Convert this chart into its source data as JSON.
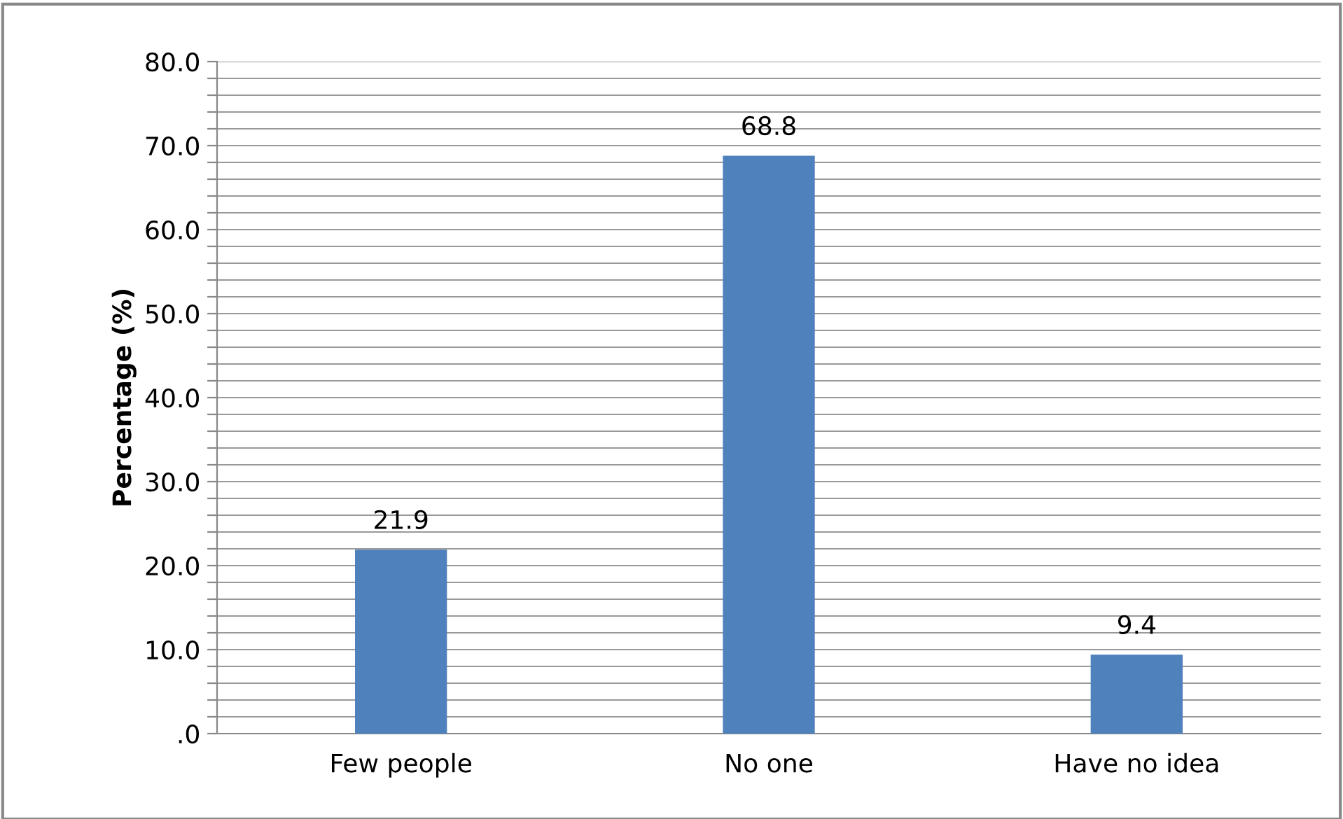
{
  "chart_data": {
    "type": "bar",
    "ylabel": "Percentage (%)",
    "categories": [
      "Few people",
      "No one",
      "Have no idea"
    ],
    "values": [
      21.9,
      68.8,
      9.4
    ],
    "color": "#4f81bd",
    "data_labels": true,
    "grid": "y",
    "ylim": [
      0,
      80
    ],
    "yticks": [
      {
        "value": 0,
        "label": ".0"
      },
      {
        "value": 2,
        "label": null
      },
      {
        "value": 4,
        "label": null
      },
      {
        "value": 6,
        "label": null
      },
      {
        "value": 8,
        "label": null
      },
      {
        "value": 10,
        "label": "10.0"
      },
      {
        "value": 12,
        "label": null
      },
      {
        "value": 14,
        "label": null
      },
      {
        "value": 16,
        "label": null
      },
      {
        "value": 18,
        "label": null
      },
      {
        "value": 20,
        "label": "20.0"
      },
      {
        "value": 22,
        "label": null
      },
      {
        "value": 24,
        "label": null
      },
      {
        "value": 26,
        "label": null
      },
      {
        "value": 28,
        "label": null
      },
      {
        "value": 30,
        "label": "30.0"
      },
      {
        "value": 32,
        "label": null
      },
      {
        "value": 34,
        "label": null
      },
      {
        "value": 36,
        "label": null
      },
      {
        "value": 38,
        "label": null
      },
      {
        "value": 40,
        "label": "40.0"
      },
      {
        "value": 42,
        "label": null
      },
      {
        "value": 44,
        "label": null
      },
      {
        "value": 46,
        "label": null
      },
      {
        "value": 48,
        "label": null
      },
      {
        "value": 50,
        "label": "50.0"
      },
      {
        "value": 52,
        "label": null
      },
      {
        "value": 54,
        "label": null
      },
      {
        "value": 56,
        "label": null
      },
      {
        "value": 58,
        "label": null
      },
      {
        "value": 60,
        "label": "60.0"
      },
      {
        "value": 62,
        "label": null
      },
      {
        "value": 64,
        "label": null
      },
      {
        "value": 66,
        "label": null
      },
      {
        "value": 68,
        "label": null
      },
      {
        "value": 70,
        "label": "70.0"
      },
      {
        "value": 72,
        "label": null
      },
      {
        "value": 74,
        "label": null
      },
      {
        "value": 76,
        "label": null
      },
      {
        "value": 78,
        "label": null
      },
      {
        "value": 80,
        "label": "80.0"
      }
    ]
  }
}
